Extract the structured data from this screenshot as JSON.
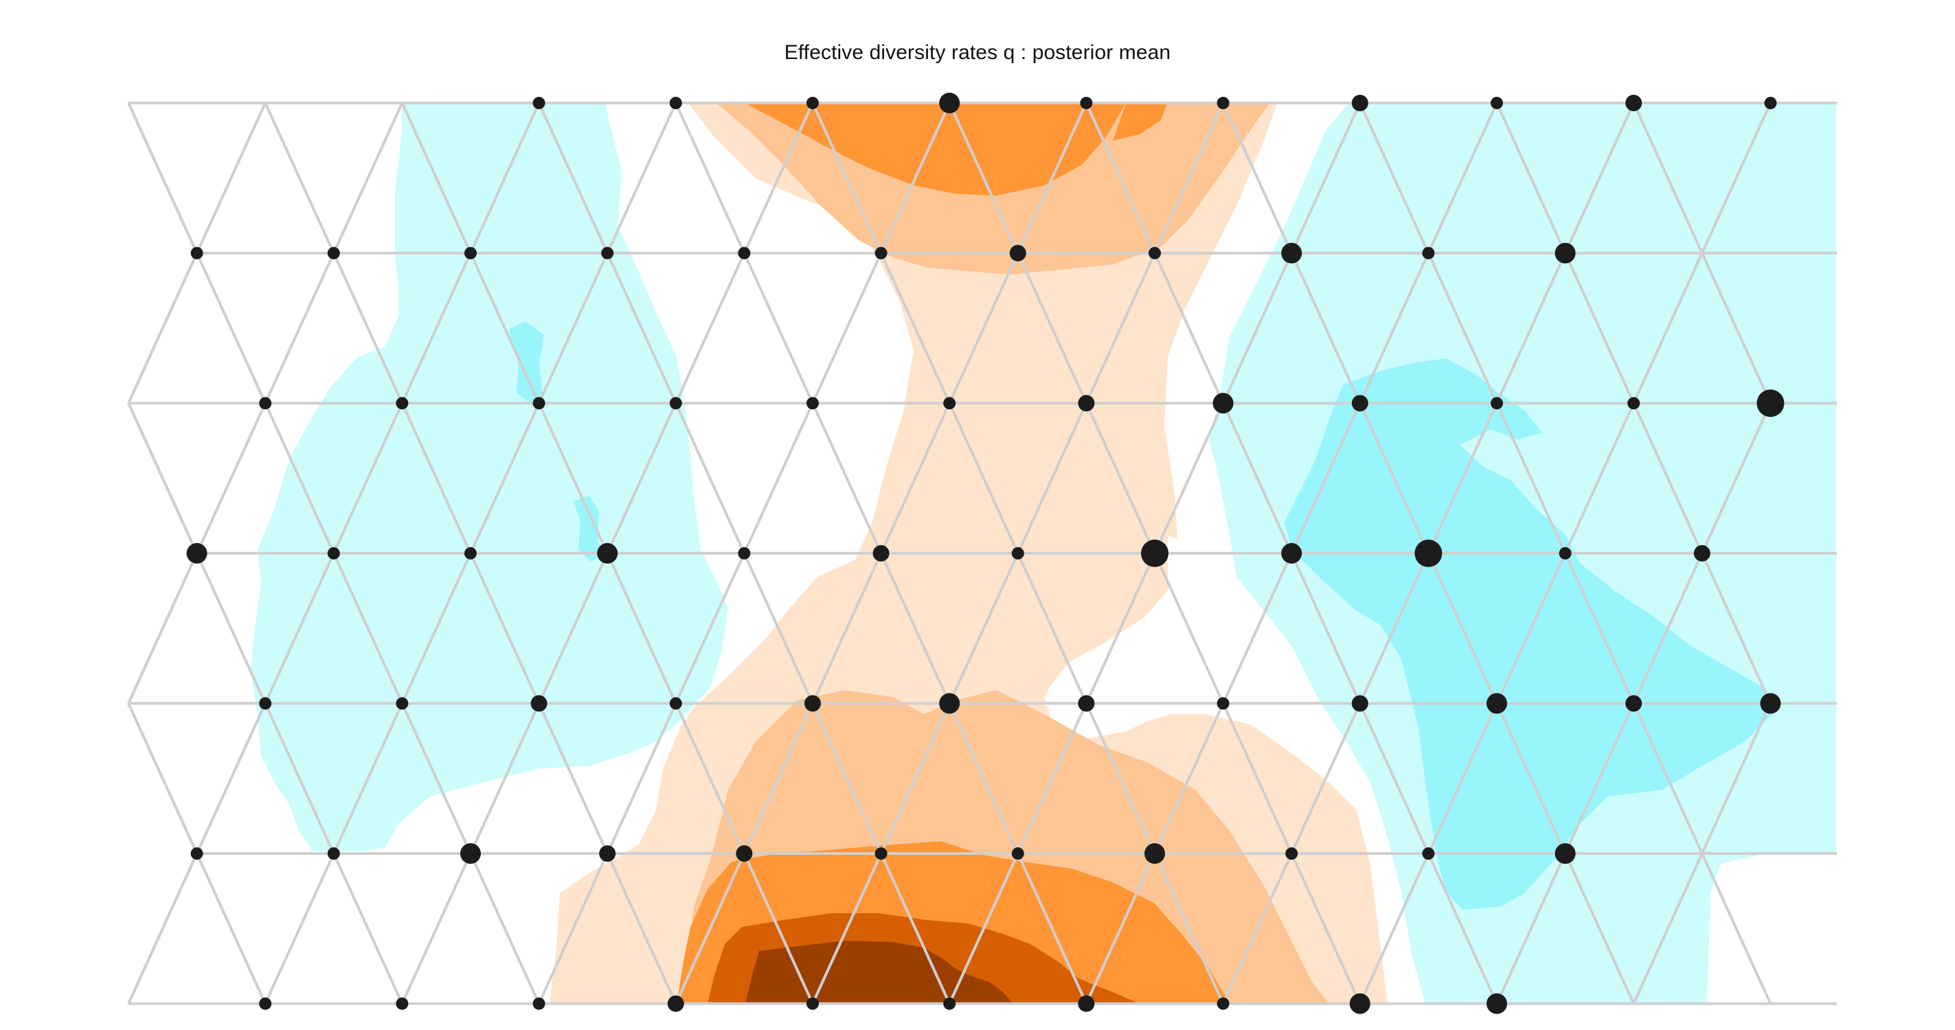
{
  "chart_data": {
    "type": "contour-grid",
    "title": "Effective diversity rates q : posterior mean",
    "grid": true,
    "palette": {
      "cyan_dark": "#98f5fb",
      "cyan_light": "#ccfcfc",
      "orange_lightest": "#ffe4cc",
      "orange_light": "#fdc593",
      "orange_mid": "#fe9635",
      "orange_dark": "#d55f02",
      "orange_darkest": "#9b3f01",
      "grid_line": "#cfcfcf",
      "point": "#1c1c1c"
    },
    "rows": [
      {
        "row": 0,
        "col_start": 3,
        "sizes": [
          1,
          1,
          1,
          3,
          1,
          1,
          2,
          1,
          2,
          1
        ]
      },
      {
        "row": 1,
        "col_start": 1,
        "sizes": [
          1,
          1,
          1,
          1,
          1,
          1,
          2,
          1,
          3,
          1,
          3
        ]
      },
      {
        "row": 2,
        "col_start": 1,
        "sizes": [
          1,
          1,
          1,
          1,
          1,
          1,
          2,
          3,
          2,
          1,
          1,
          4
        ]
      },
      {
        "row": 3,
        "col_start": 1,
        "sizes": [
          3,
          1,
          1,
          3,
          1,
          2,
          1,
          4,
          3,
          4,
          1,
          2
        ]
      },
      {
        "row": 4,
        "col_start": 1,
        "sizes": [
          1,
          1,
          2,
          1,
          2,
          3,
          2,
          1,
          2,
          3,
          2,
          3
        ]
      },
      {
        "row": 5,
        "col_start": 1,
        "sizes": [
          1,
          1,
          3,
          2,
          2,
          1,
          1,
          3,
          1,
          1,
          3
        ]
      },
      {
        "row": 6,
        "col_start": 1,
        "sizes": [
          1,
          1,
          1,
          2,
          1,
          1,
          2,
          1,
          3,
          3
        ]
      }
    ]
  }
}
